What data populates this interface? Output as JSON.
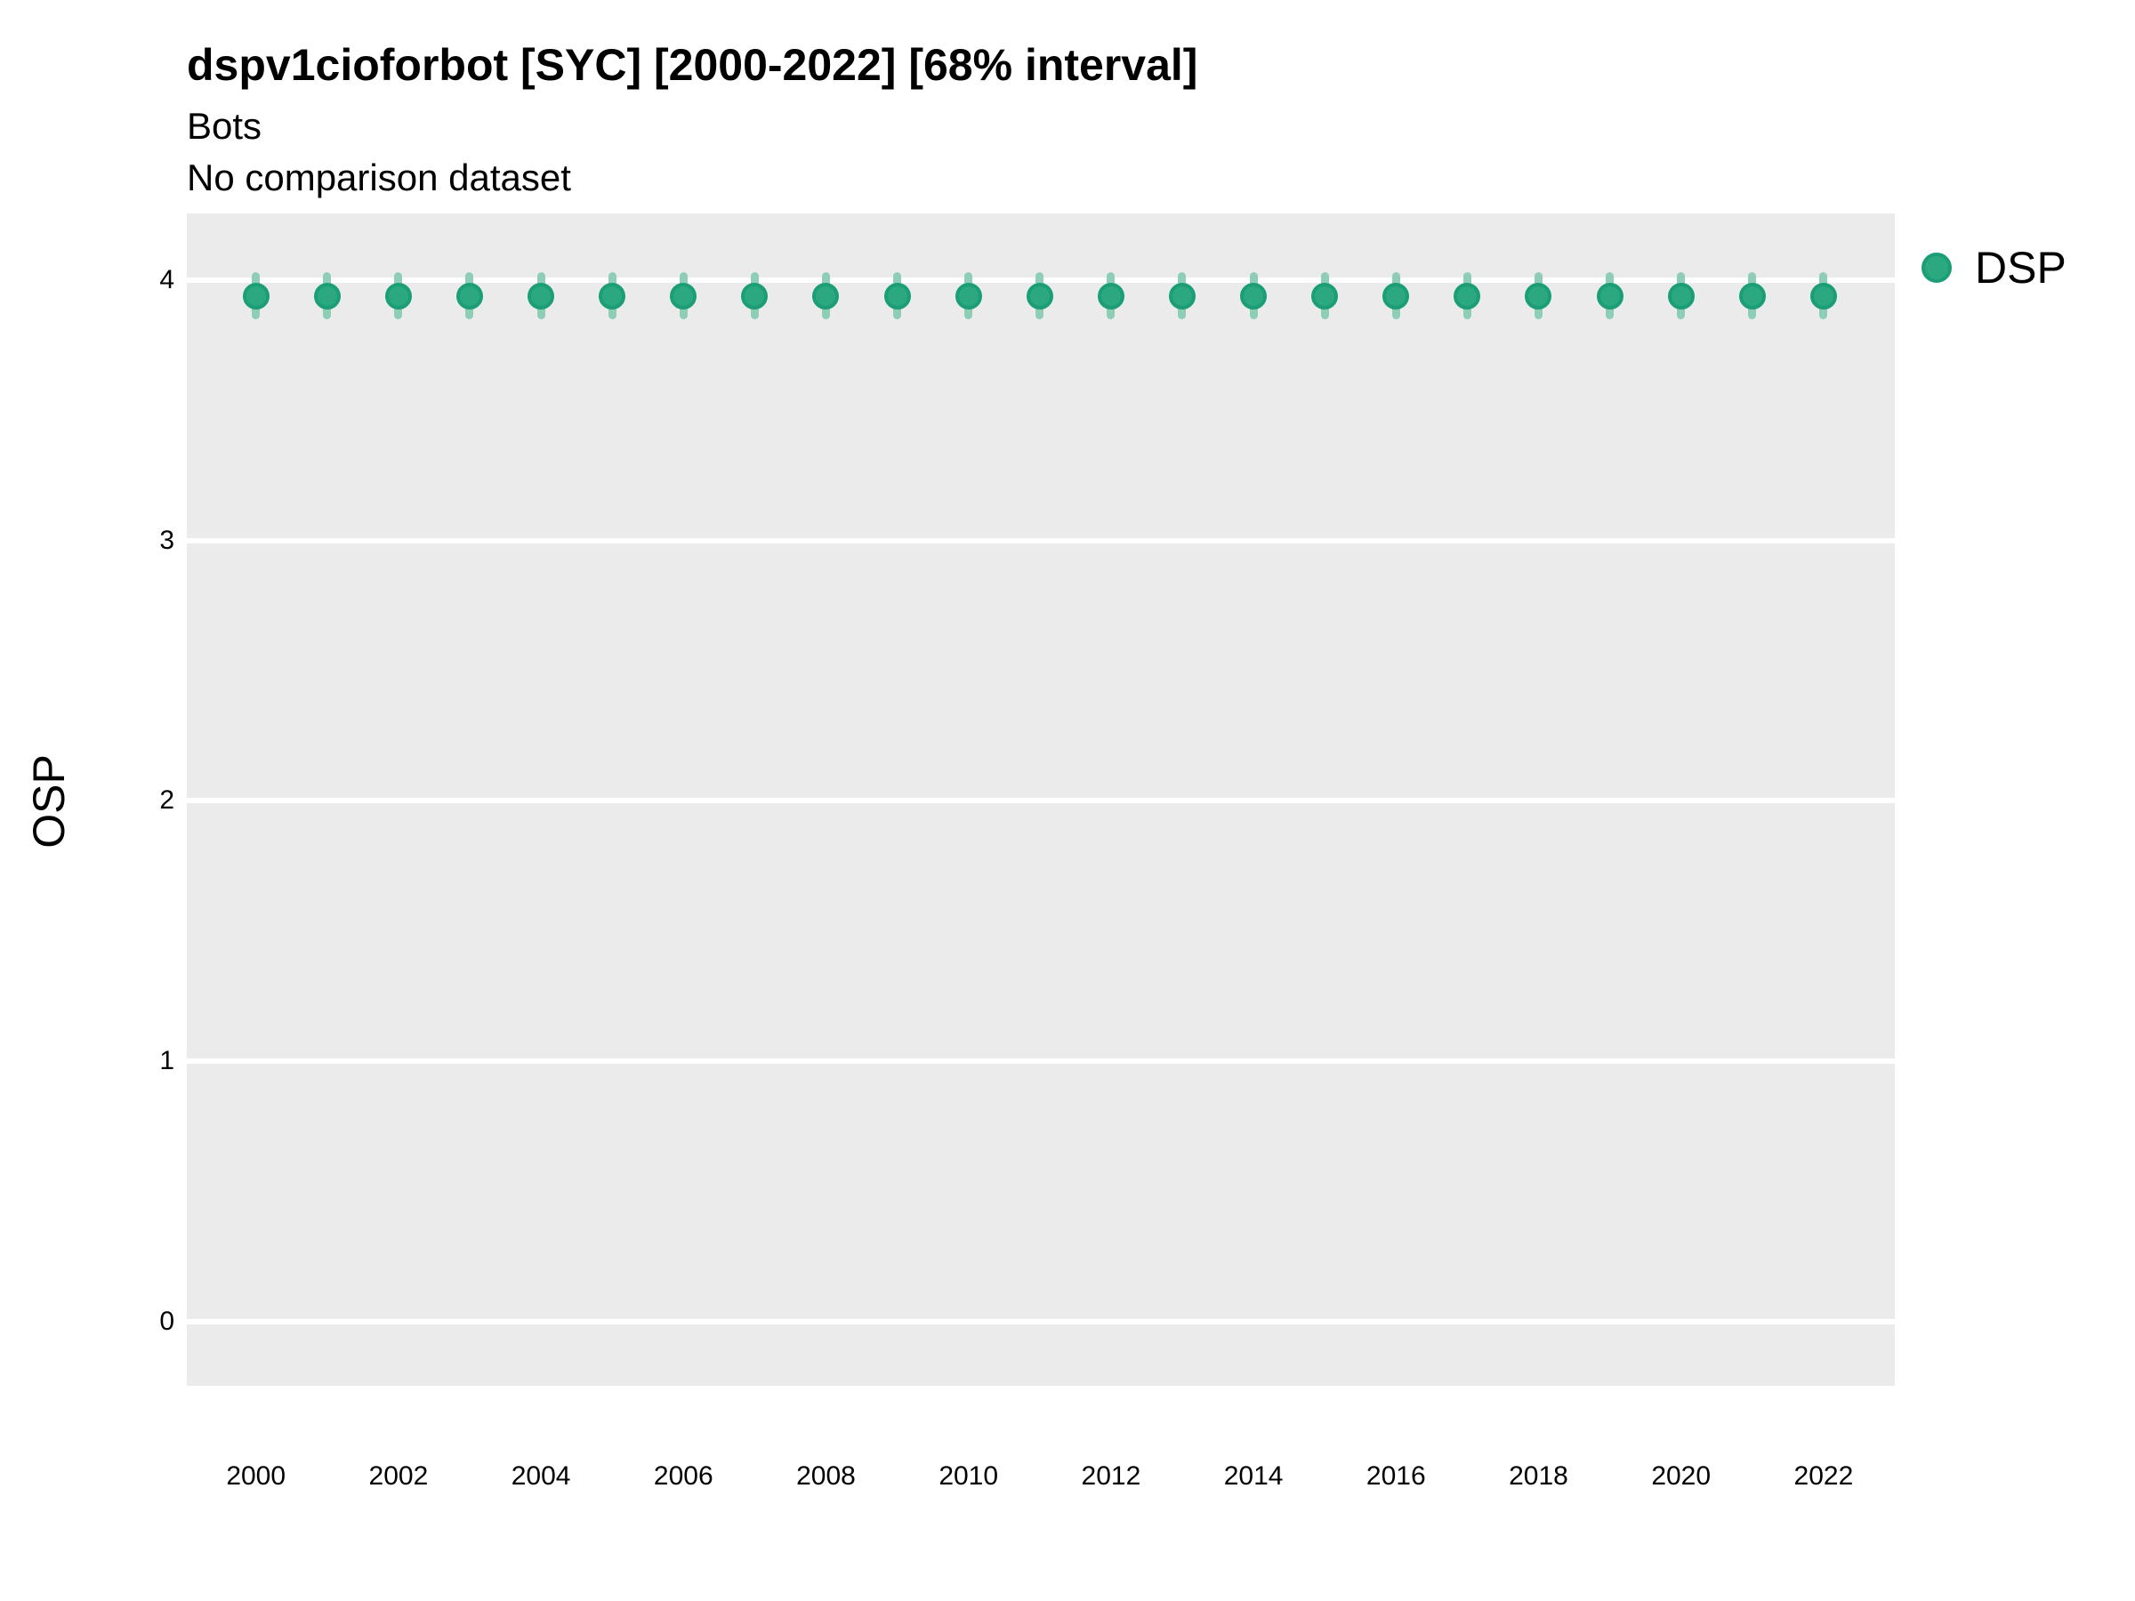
{
  "header": {
    "title": "dspv1cioforbot [SYC] [2000-2022] [68% interval]",
    "subtitle1": "Bots",
    "subtitle2": "No comparison dataset"
  },
  "legend": {
    "position": "right",
    "items": [
      {
        "label": "DSP",
        "color": "#2BA87F",
        "stroke": "#1B9E77"
      }
    ]
  },
  "colors": {
    "panel_background": "#EBEBEB",
    "gridline": "#FFFFFF",
    "point_fill": "#2BA87F",
    "point_stroke": "#1B9E77",
    "interval_bar": "#8FCEB6",
    "text": "#000000"
  },
  "chart_data": {
    "type": "scatter",
    "title": "dspv1cioforbot [SYC] [2000-2022] [68% interval]",
    "subtitle": "Bots / No comparison dataset",
    "xlabel": "",
    "ylabel": "OSP",
    "x": [
      2000,
      2001,
      2002,
      2003,
      2004,
      2005,
      2006,
      2007,
      2008,
      2009,
      2010,
      2011,
      2012,
      2013,
      2014,
      2015,
      2016,
      2017,
      2018,
      2019,
      2020,
      2021,
      2022
    ],
    "series": [
      {
        "name": "DSP",
        "values": [
          3.94,
          3.94,
          3.94,
          3.94,
          3.94,
          3.94,
          3.94,
          3.94,
          3.94,
          3.94,
          3.94,
          3.94,
          3.94,
          3.94,
          3.94,
          3.94,
          3.94,
          3.94,
          3.94,
          3.94,
          3.94,
          3.94,
          3.94
        ],
        "lower": [
          3.85,
          3.85,
          3.85,
          3.85,
          3.85,
          3.85,
          3.85,
          3.85,
          3.85,
          3.85,
          3.85,
          3.85,
          3.85,
          3.85,
          3.85,
          3.85,
          3.85,
          3.85,
          3.85,
          3.85,
          3.85,
          3.85,
          3.85
        ],
        "upper": [
          4.03,
          4.03,
          4.03,
          4.03,
          4.03,
          4.03,
          4.03,
          4.03,
          4.03,
          4.03,
          4.03,
          4.03,
          4.03,
          4.03,
          4.03,
          4.03,
          4.03,
          4.03,
          4.03,
          4.03,
          4.03,
          4.03,
          4.03
        ],
        "interval": "68%"
      }
    ],
    "xticks": [
      2000,
      2002,
      2004,
      2006,
      2008,
      2010,
      2012,
      2014,
      2016,
      2018,
      2020,
      2022
    ],
    "yticks": [
      0,
      1,
      2,
      3,
      4
    ],
    "xlim": [
      1999.03,
      2023.0
    ],
    "ylim": [
      -0.246,
      4.256
    ],
    "grid": "horizontal-major-only",
    "legend_position": "right"
  }
}
